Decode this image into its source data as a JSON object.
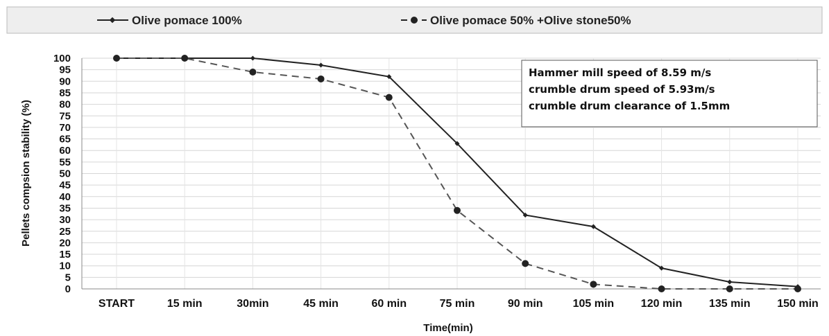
{
  "chart_data": {
    "type": "line",
    "title": "",
    "xlabel": "Time(min)",
    "ylabel": "Pellets compsion  stability  (%)",
    "categories": [
      "START",
      "15 min",
      "30min",
      "45 min",
      "60 min",
      "75 min",
      "90 min",
      "105 min",
      "120 min",
      "135 min",
      "150 min"
    ],
    "ylim": [
      0,
      100
    ],
    "yticks": [
      0,
      5,
      10,
      15,
      20,
      25,
      30,
      35,
      40,
      45,
      50,
      55,
      60,
      65,
      70,
      75,
      80,
      85,
      90,
      95,
      100
    ],
    "grid": true,
    "legend_position": "top",
    "series": [
      {
        "name": "Olive pomace  100%",
        "color": "#222222",
        "line": "solid",
        "marker": "small-diamond",
        "values": [
          100,
          100,
          100,
          97,
          92,
          63,
          32,
          27,
          9,
          3,
          1
        ]
      },
      {
        "name": "Olive pomace  50% +Olive stone50%",
        "color": "#222222",
        "line": "dashed",
        "marker": "circle",
        "values": [
          100,
          100,
          94,
          91,
          83,
          34,
          11,
          2,
          0,
          0,
          0
        ]
      }
    ],
    "annotation": {
      "lines": [
        "Hammer mill speed of 8.59 m/s",
        "crumble drum speed of 5.93m/s",
        "crumble drum clearance of 1.5mm"
      ]
    }
  }
}
